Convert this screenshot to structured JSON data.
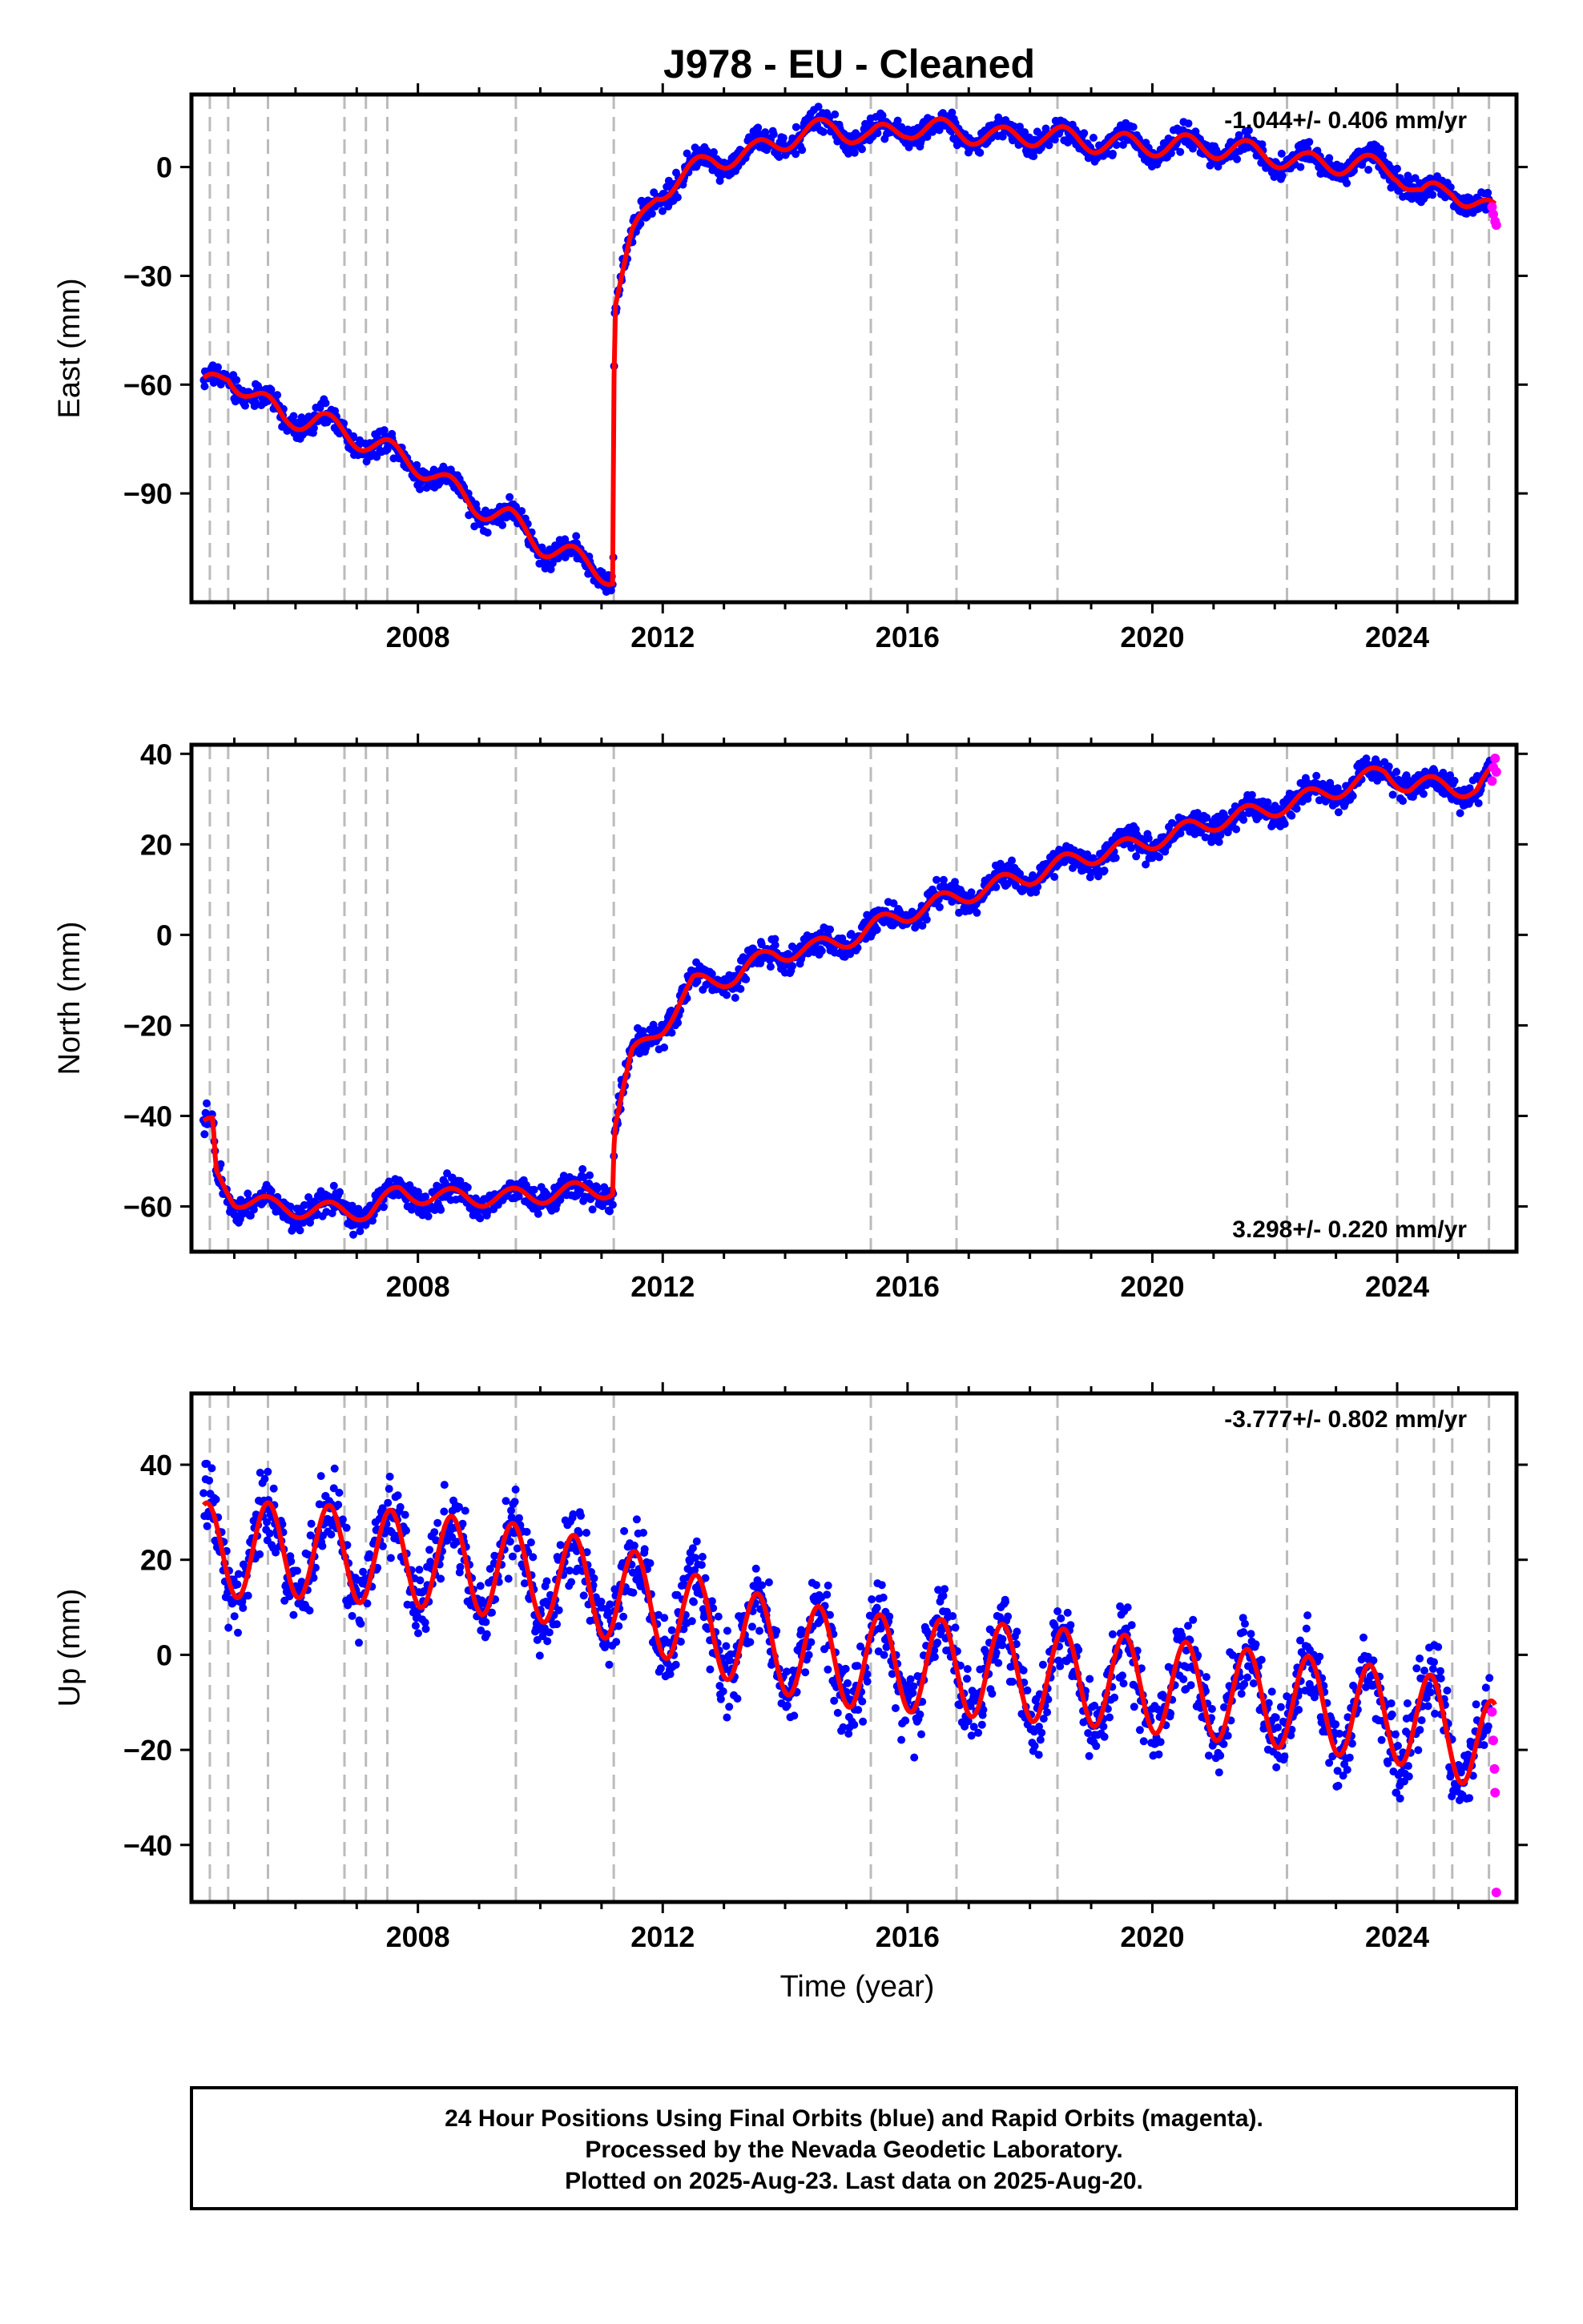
{
  "title": "J978  - EU - Cleaned",
  "caption": {
    "line1": "24 Hour Positions Using Final Orbits (blue) and Rapid Orbits (magenta).",
    "line2": "Processed by the Nevada Geodetic Laboratory.",
    "line3": "Plotted on 2025-Aug-23. Last data on 2025-Aug-20."
  },
  "colors": {
    "final": "#0000ff",
    "rapid": "#ff00ff",
    "model": "#ff0000",
    "events": "#bbbbbb"
  },
  "chart_data": [
    {
      "type": "scatter",
      "ylabel": "East (mm)",
      "xlabel": "",
      "rate_label": "-1.044+/- 0.406 mm/yr",
      "xlim": [
        2004.3,
        2025.95
      ],
      "ylim": [
        -120,
        20
      ],
      "x_ticks": [
        2008,
        2012,
        2016,
        2020,
        2024
      ],
      "y_ticks": [
        0,
        -30,
        -60,
        -90
      ],
      "event_lines": [
        2004.6,
        2004.9,
        2005.55,
        2006.8,
        2007.15,
        2007.5,
        2009.6,
        2011.2,
        2015.4,
        2016.8,
        2018.45,
        2022.2,
        2024.0,
        2024.6,
        2024.9,
        2025.5
      ],
      "model_anchors": [
        [
          2004.5,
          -61
        ],
        [
          2004.9,
          -57
        ],
        [
          2005.3,
          -63
        ],
        [
          2005.8,
          -69
        ],
        [
          2006.4,
          -70
        ],
        [
          2006.9,
          -74
        ],
        [
          2007.5,
          -78
        ],
        [
          2008.2,
          -84
        ],
        [
          2008.9,
          -93
        ],
        [
          2009.5,
          -97
        ],
        [
          2010.0,
          -104
        ],
        [
          2010.6,
          -108
        ],
        [
          2011.19,
          -113
        ],
        [
          2011.21,
          -38
        ],
        [
          2011.5,
          -20
        ],
        [
          2011.9,
          -7
        ],
        [
          2012.3,
          -3
        ],
        [
          2012.8,
          2
        ],
        [
          2013.5,
          4
        ],
        [
          2014.2,
          9
        ],
        [
          2014.8,
          11
        ],
        [
          2015.4,
          8
        ],
        [
          2016.0,
          11
        ],
        [
          2016.8,
          10
        ],
        [
          2017.5,
          8
        ],
        [
          2018.2,
          9
        ],
        [
          2019.0,
          7
        ],
        [
          2019.8,
          6
        ],
        [
          2020.5,
          6
        ],
        [
          2021.3,
          5
        ],
        [
          2022.0,
          3
        ],
        [
          2022.5,
          1
        ],
        [
          2023.3,
          1
        ],
        [
          2024.0,
          -1
        ],
        [
          2024.4,
          -8
        ],
        [
          2024.9,
          -6
        ],
        [
          2025.3,
          -10
        ],
        [
          2025.6,
          -13
        ]
      ],
      "seasonal_amplitude": 3,
      "scatter_noise": 2.2,
      "rapid_points": [
        [
          2025.55,
          -11
        ],
        [
          2025.57,
          -13
        ],
        [
          2025.6,
          -15
        ],
        [
          2025.62,
          -16
        ]
      ]
    },
    {
      "type": "scatter",
      "ylabel": "North (mm)",
      "xlabel": "",
      "rate_label": "3.298+/- 0.220 mm/yr",
      "xlim": [
        2004.3,
        2025.95
      ],
      "ylim": [
        -70,
        42
      ],
      "x_ticks": [
        2008,
        2012,
        2016,
        2020,
        2024
      ],
      "y_ticks": [
        40,
        20,
        0,
        -20,
        -40,
        -60
      ],
      "event_lines": [
        2004.6,
        2004.9,
        2005.55,
        2006.8,
        2007.15,
        2007.5,
        2009.6,
        2011.2,
        2015.4,
        2016.8,
        2018.45,
        2022.2,
        2024.0,
        2024.6,
        2024.9,
        2025.5
      ],
      "model_anchors": [
        [
          2004.5,
          -43
        ],
        [
          2004.65,
          -42
        ],
        [
          2004.7,
          -53
        ],
        [
          2005.0,
          -58
        ],
        [
          2005.6,
          -60
        ],
        [
          2006.5,
          -61
        ],
        [
          2007.2,
          -61
        ],
        [
          2007.7,
          -57
        ],
        [
          2008.5,
          -58
        ],
        [
          2009.5,
          -58
        ],
        [
          2010.3,
          -57
        ],
        [
          2011.19,
          -56
        ],
        [
          2011.21,
          -42
        ],
        [
          2011.5,
          -27
        ],
        [
          2012.0,
          -20
        ],
        [
          2012.5,
          -11
        ],
        [
          2013.2,
          -9
        ],
        [
          2013.8,
          -4
        ],
        [
          2014.5,
          -3
        ],
        [
          2015.2,
          0
        ],
        [
          2015.8,
          4
        ],
        [
          2016.5,
          7
        ],
        [
          2017.2,
          10
        ],
        [
          2018.0,
          13
        ],
        [
          2018.8,
          17
        ],
        [
          2019.5,
          19
        ],
        [
          2020.3,
          22
        ],
        [
          2021.0,
          25
        ],
        [
          2021.7,
          27
        ],
        [
          2022.5,
          30
        ],
        [
          2023.2,
          33
        ],
        [
          2023.8,
          36
        ],
        [
          2024.2,
          33
        ],
        [
          2024.8,
          33
        ],
        [
          2025.3,
          32
        ],
        [
          2025.6,
          36
        ]
      ],
      "seasonal_amplitude": 2,
      "scatter_noise": 2.0,
      "rapid_points": [
        [
          2025.55,
          34
        ],
        [
          2025.57,
          37
        ],
        [
          2025.6,
          39
        ],
        [
          2025.62,
          36
        ]
      ]
    },
    {
      "type": "scatter",
      "ylabel": "Up (mm)",
      "xlabel": "Time (year)",
      "rate_label": "-3.777+/- 0.802 mm/yr",
      "xlim": [
        2004.3,
        2025.95
      ],
      "ylim": [
        -52,
        55
      ],
      "x_ticks": [
        2008,
        2012,
        2016,
        2020,
        2024
      ],
      "y_ticks": [
        40,
        20,
        0,
        -20,
        -40
      ],
      "event_lines": [
        2004.6,
        2004.9,
        2005.55,
        2006.8,
        2007.15,
        2007.5,
        2009.6,
        2011.2,
        2015.4,
        2016.8,
        2018.45,
        2022.2,
        2024.0,
        2024.6,
        2024.9,
        2025.5
      ],
      "model_anchors": [
        [
          2004.5,
          22
        ],
        [
          2006.0,
          22
        ],
        [
          2008.0,
          20
        ],
        [
          2010.0,
          17
        ],
        [
          2011.5,
          12
        ],
        [
          2012.5,
          7
        ],
        [
          2013.5,
          3
        ],
        [
          2015.0,
          -1
        ],
        [
          2017.0,
          -3
        ],
        [
          2019.0,
          -5
        ],
        [
          2021.0,
          -8
        ],
        [
          2023.0,
          -11
        ],
        [
          2024.5,
          -14
        ],
        [
          2025.6,
          -20
        ]
      ],
      "seasonal_amplitude": 10,
      "scatter_noise": 5.5,
      "rapid_points": [
        [
          2025.55,
          -12
        ],
        [
          2025.57,
          -18
        ],
        [
          2025.59,
          -24
        ],
        [
          2025.6,
          -29
        ],
        [
          2025.62,
          -50
        ]
      ]
    }
  ]
}
